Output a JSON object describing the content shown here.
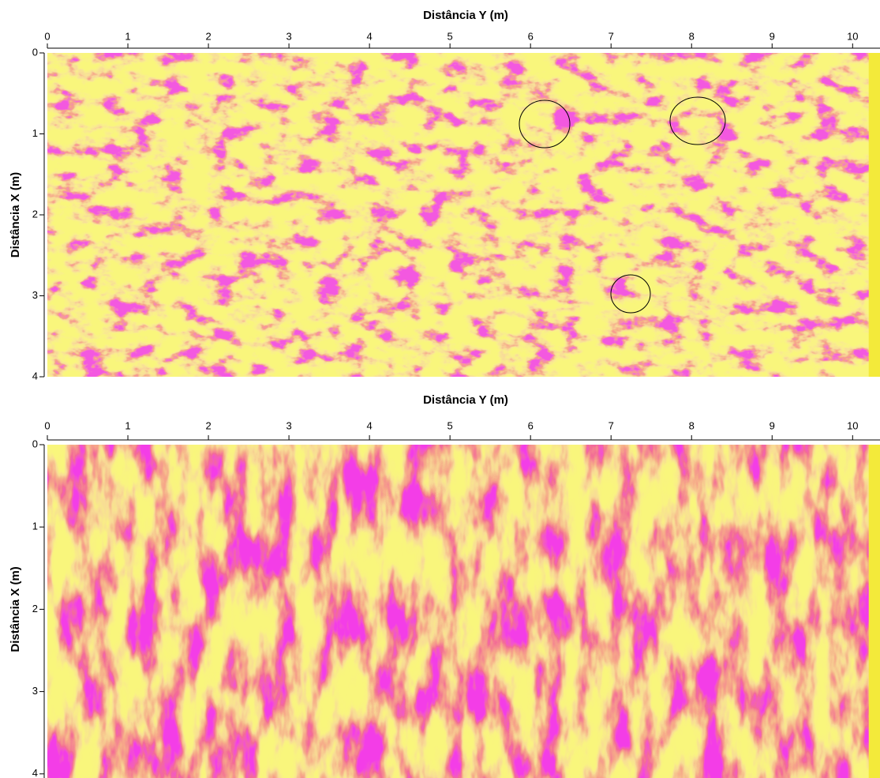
{
  "chart_data": [
    {
      "type": "heatmap",
      "title": "Distância Y (m)",
      "y_label": "Distância X (m)",
      "xlim": [
        0,
        10.34
      ],
      "xticks": [
        0,
        1,
        2,
        3,
        4,
        5,
        6,
        7,
        8,
        9,
        10
      ],
      "ylim": [
        0,
        4
      ],
      "yticks": [
        0,
        1,
        2,
        3,
        4
      ]
    },
    {
      "type": "heatmap",
      "title": "Distância Y (m)",
      "y_label": "Distância X (m)",
      "xlim": [
        0,
        10.34
      ],
      "xticks": [
        0,
        1,
        2,
        3,
        4,
        5,
        6,
        7,
        8,
        9,
        10
      ],
      "ylim": [
        0,
        4.05
      ],
      "yticks": [
        0,
        1,
        2,
        3,
        4
      ]
    }
  ]
}
